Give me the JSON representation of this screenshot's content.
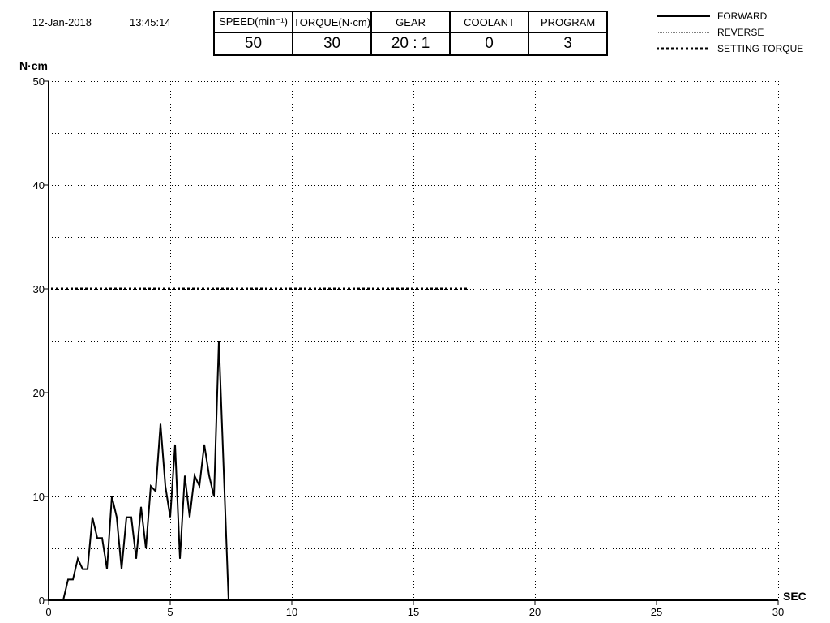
{
  "header": {
    "date": "12-Jan-2018",
    "time": "13:45:14"
  },
  "info_table": [
    {
      "label": "SPEED(min⁻¹)",
      "value": "50"
    },
    {
      "label": "TORQUE(N·cm)",
      "value": "30"
    },
    {
      "label": "GEAR",
      "value": "20 : 1"
    },
    {
      "label": "COOLANT",
      "value": "0"
    },
    {
      "label": "PROGRAM",
      "value": "3"
    }
  ],
  "chart_data": {
    "type": "line",
    "xlabel": "SEC",
    "ylabel": "N·cm",
    "xlim": [
      0,
      30
    ],
    "ylim": [
      0,
      50
    ],
    "xticks": [
      0,
      5,
      10,
      15,
      20,
      25,
      30
    ],
    "yticks": [
      0,
      10,
      20,
      30,
      40,
      50
    ],
    "grid": true,
    "legend_position": "top-right",
    "legend": [
      {
        "name": "FORWARD",
        "style": "solid"
      },
      {
        "name": "REVERSE",
        "style": "thin-dotted"
      },
      {
        "name": "SETTING TORQUE",
        "style": "thick-dotted"
      }
    ],
    "series": [
      {
        "name": "FORWARD",
        "x": [
          0.6,
          0.8,
          1.0,
          1.2,
          1.4,
          1.6,
          1.8,
          2.0,
          2.2,
          2.4,
          2.6,
          2.8,
          3.0,
          3.2,
          3.4,
          3.6,
          3.8,
          4.0,
          4.2,
          4.4,
          4.6,
          4.8,
          5.0,
          5.2,
          5.4,
          5.6,
          5.8,
          6.0,
          6.2,
          6.4,
          6.6,
          6.8,
          7.0,
          7.4
        ],
        "y": [
          0,
          2,
          2,
          4,
          3,
          3,
          8,
          6,
          6,
          3,
          10,
          8,
          3,
          8,
          8,
          4,
          9,
          5,
          11,
          10.5,
          17,
          11,
          8,
          15,
          4,
          12,
          8,
          12,
          11,
          15,
          12,
          10,
          25,
          0
        ]
      }
    ],
    "setting_torque": {
      "value": 30,
      "x_end": 17.2
    }
  },
  "colors": {
    "line": "#000000",
    "grid": "#000000",
    "background": "#ffffff"
  }
}
